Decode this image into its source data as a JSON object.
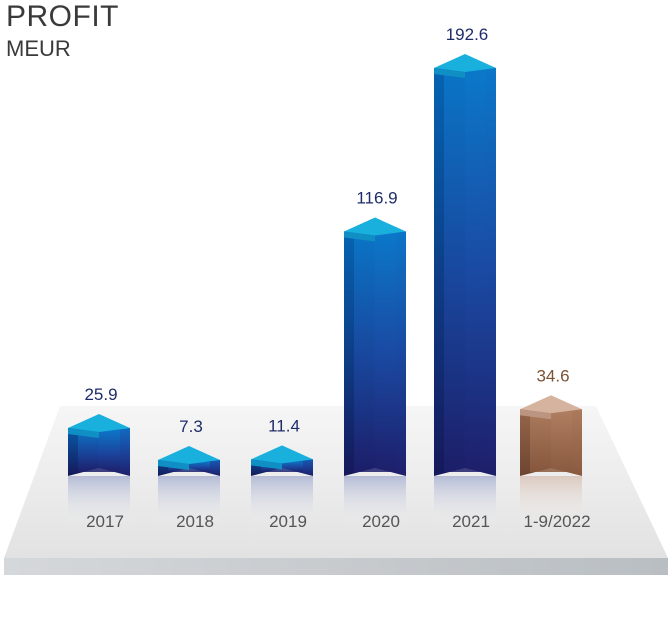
{
  "chart_data": {
    "type": "bar",
    "title": "PROFIT",
    "subtitle": "MEUR",
    "xlabel": "",
    "ylabel": "",
    "ylim": [
      0,
      200
    ],
    "grid": false,
    "categories": [
      "2017",
      "2018",
      "2019",
      "2020",
      "2021",
      "1-9/2022"
    ],
    "values": [
      25.9,
      7.3,
      11.4,
      116.9,
      192.6,
      34.6
    ],
    "value_labels": [
      "25.9",
      "7.3",
      "11.4",
      "116.9",
      "192.6",
      "34.6"
    ],
    "colors": {
      "bar": "#1e3f99",
      "bar_top": "#19b0dd",
      "highlight_bar": "#9a6a4e",
      "highlight_top": "#d6b39e",
      "value_label": "#1f2c6b",
      "highlight_label": "#7a5236",
      "category_label": "#555555"
    },
    "highlight_index": 5
  }
}
